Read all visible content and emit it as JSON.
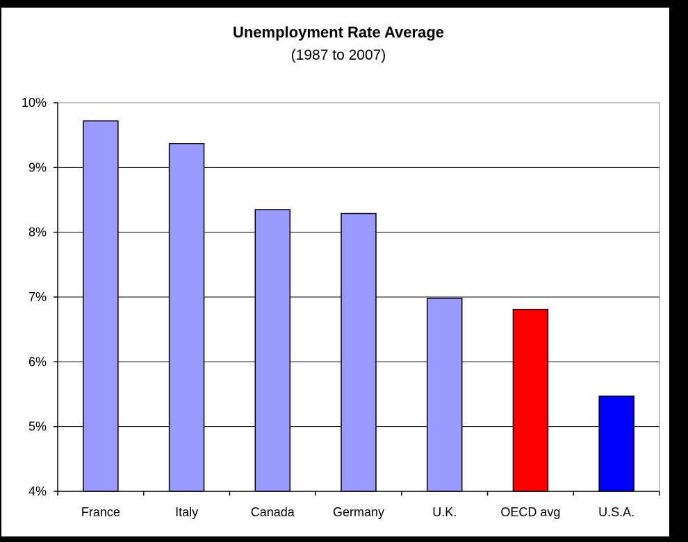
{
  "chart_data": {
    "type": "bar",
    "title": "Unemployment Rate Average",
    "subtitle": "(1987 to 2007)",
    "xlabel": "",
    "ylabel": "",
    "categories": [
      "France",
      "Italy",
      "Canada",
      "Germany",
      "U.K.",
      "OECD avg",
      "U.S.A."
    ],
    "values": [
      9.72,
      9.37,
      8.35,
      8.29,
      6.98,
      6.81,
      5.47
    ],
    "bar_colors": [
      "#9999ff",
      "#9999ff",
      "#9999ff",
      "#9999ff",
      "#9999ff",
      "#ff0000",
      "#0000ff"
    ],
    "ylim": [
      4,
      10
    ],
    "yticks": [
      4,
      5,
      6,
      7,
      8,
      9,
      10
    ],
    "ytick_labels": [
      "4%",
      "5%",
      "6%",
      "7%",
      "8%",
      "9%",
      "10%"
    ],
    "grid": true,
    "legend": "none",
    "background_color": "#000000",
    "plot_background_color": "#ffffff",
    "bar_outline_color": "#000000"
  }
}
